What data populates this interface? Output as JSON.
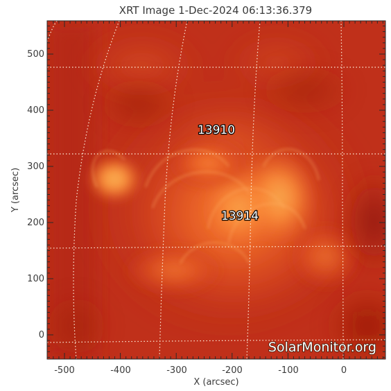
{
  "image": {
    "title": "XRT Image   1-Dec-2024 06:13:36.379",
    "x_axis": {
      "label": "X (arcsec)",
      "ticks": [
        "-500",
        "-400",
        "-300",
        "-200",
        "-100",
        "0"
      ]
    },
    "y_axis": {
      "label": "Y (arcsec)",
      "ticks": [
        "0",
        "100",
        "200",
        "300",
        "400",
        "500"
      ]
    },
    "regions": [
      {
        "id": "13910",
        "label": "13910"
      },
      {
        "id": "13914",
        "label": "13914"
      }
    ],
    "watermark": "SolarMonitor.org",
    "colors": {
      "background": "#c0301a",
      "bright": "#ff9a40",
      "grid": "#ffe6cc"
    }
  }
}
